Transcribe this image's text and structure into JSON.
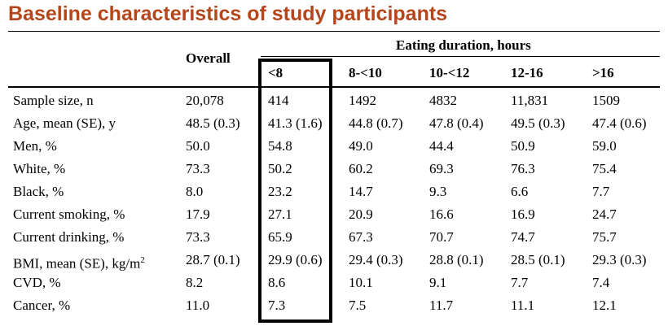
{
  "title": "Baseline characteristics of study participants",
  "table": {
    "group_header": "Eating duration, hours",
    "overall_header": "Overall",
    "columns": [
      "<8",
      "8-<10",
      "10-<12",
      "12-16",
      ">16"
    ],
    "rows": [
      {
        "label": "Sample size, n",
        "overall": "20,078",
        "values": [
          "414",
          "1492",
          "4832",
          "11,831",
          "1509"
        ]
      },
      {
        "label": "Age, mean (SE), y",
        "overall": "48.5 (0.3)",
        "values": [
          "41.3 (1.6)",
          "44.8 (0.7)",
          "47.8 (0.4)",
          "49.5 (0.3)",
          "47.4 (0.6)"
        ]
      },
      {
        "label": "Men, %",
        "overall": "50.0",
        "values": [
          "54.8",
          "49.0",
          "44.4",
          "50.9",
          "59.0"
        ]
      },
      {
        "label": "White, %",
        "overall": "73.3",
        "values": [
          "50.2",
          "60.2",
          "69.3",
          "76.3",
          "75.4"
        ]
      },
      {
        "label": "Black, %",
        "overall": "8.0",
        "values": [
          "23.2",
          "14.7",
          "9.3",
          "6.6",
          "7.7"
        ]
      },
      {
        "label": "Current smoking, %",
        "overall": "17.9",
        "values": [
          "27.1",
          "20.9",
          "16.6",
          "16.9",
          "24.7"
        ]
      },
      {
        "label": "Current drinking, %",
        "overall": "73.3",
        "values": [
          "65.9",
          "67.3",
          "70.7",
          "74.7",
          "75.7"
        ]
      },
      {
        "label": "BMI, mean (SE), kg/m",
        "label_sup": "2",
        "overall": "28.7 (0.1)",
        "values": [
          "29.9 (0.6)",
          "29.4 (0.3)",
          "28.8 (0.1)",
          "28.5 (0.1)",
          "29.3 (0.3)"
        ]
      },
      {
        "label": "CVD, %",
        "overall": "8.2",
        "values": [
          "8.6",
          "10.1",
          "9.1",
          "7.7",
          "7.4"
        ]
      },
      {
        "label": "Cancer, %",
        "overall": "11.0",
        "values": [
          "7.3",
          "7.5",
          "11.7",
          "11.1",
          "12.1"
        ]
      }
    ]
  }
}
